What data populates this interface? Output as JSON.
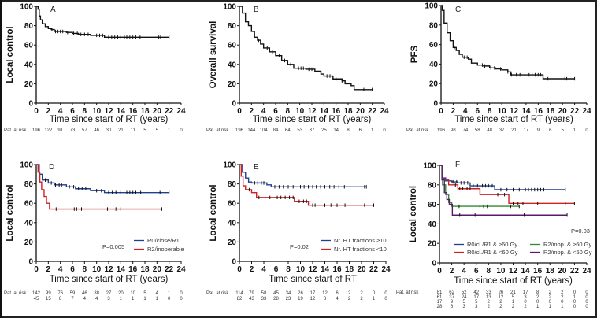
{
  "chart_data": [
    {
      "type": "line",
      "panel": "A",
      "ylabel": "Local control",
      "xlabel": "Time since start of RT (years)",
      "xlim": [
        0,
        24
      ],
      "ylim": [
        0,
        100
      ],
      "xticks": [
        "0",
        "2",
        "4",
        "6",
        "8",
        "10",
        "12",
        "14",
        "16",
        "18",
        "20",
        "22",
        "24"
      ],
      "yticks": [
        "0",
        "20",
        "40",
        "60",
        "80",
        "100"
      ],
      "series": [
        {
          "color": "#111111",
          "points": [
            [
              0,
              100
            ],
            [
              0.3,
              97
            ],
            [
              0.5,
              90
            ],
            [
              0.7,
              86
            ],
            [
              1,
              82
            ],
            [
              1.5,
              79
            ],
            [
              2,
              77
            ],
            [
              2.5,
              76
            ],
            [
              3,
              74
            ],
            [
              5,
              73
            ],
            [
              6,
              72
            ],
            [
              7,
              71
            ],
            [
              9,
              70
            ],
            [
              11.3,
              68
            ],
            [
              22,
              68
            ]
          ],
          "censored": [
            2.6,
            3.2,
            3.6,
            4,
            4.4,
            5.2,
            6.2,
            6.8,
            7.4,
            8,
            8.6,
            10,
            10.5,
            11,
            12,
            12.5,
            13,
            13.5,
            14,
            14.6,
            15,
            15.5,
            16,
            16.5,
            17.2,
            20.3,
            20.6,
            22
          ]
        }
      ],
      "at_risk": {
        "label": "Pat. at risk",
        "rows": [
          [
            "196",
            "122",
            "91",
            "73",
            "57",
            "46",
            "30",
            "21",
            "11",
            "5",
            "5",
            "1",
            "0"
          ]
        ]
      }
    },
    {
      "type": "line",
      "panel": "B",
      "ylabel": "Overall survival",
      "xlabel": "Time since start of RT (years)",
      "xlim": [
        0,
        24
      ],
      "ylim": [
        0,
        100
      ],
      "xticks": [
        "0",
        "2",
        "4",
        "6",
        "8",
        "10",
        "12",
        "14",
        "16",
        "18",
        "20",
        "22",
        "24"
      ],
      "yticks": [
        "0",
        "20",
        "40",
        "60",
        "80",
        "100"
      ],
      "series": [
        {
          "color": "#111111",
          "points": [
            [
              0,
              100
            ],
            [
              0.5,
              93
            ],
            [
              1,
              84
            ],
            [
              1.5,
              80
            ],
            [
              2,
              74
            ],
            [
              2.5,
              68
            ],
            [
              3,
              65
            ],
            [
              3.5,
              61
            ],
            [
              4,
              57
            ],
            [
              5,
              53
            ],
            [
              6,
              49
            ],
            [
              7,
              44
            ],
            [
              8,
              40
            ],
            [
              9,
              36
            ],
            [
              11,
              35
            ],
            [
              12.5,
              33
            ],
            [
              13.5,
              30
            ],
            [
              14,
              28
            ],
            [
              15.5,
              25
            ],
            [
              17,
              23
            ],
            [
              17.5,
              20
            ],
            [
              18.5,
              18
            ],
            [
              19,
              14
            ],
            [
              22,
              14
            ]
          ],
          "censored": [
            3.2,
            4.6,
            5.5,
            6.6,
            7.5,
            8.5,
            9.8,
            10.2,
            10.6,
            11.5,
            12,
            14.5,
            15,
            16,
            17,
            20.6,
            22
          ]
        }
      ],
      "at_risk": {
        "label": "Pat. at risk",
        "rows": [
          [
            "196",
            "144",
            "104",
            "84",
            "64",
            "53",
            "37",
            "25",
            "14",
            "8",
            "6",
            "1",
            "0"
          ]
        ]
      }
    },
    {
      "type": "line",
      "panel": "C",
      "ylabel": "PFS",
      "xlabel": "Time since start of RT (years)",
      "xlim": [
        0,
        24
      ],
      "ylim": [
        0,
        100
      ],
      "xticks": [
        "0",
        "2",
        "4",
        "6",
        "8",
        "10",
        "12",
        "14",
        "16",
        "18",
        "20",
        "22",
        "24"
      ],
      "yticks": [
        "0",
        "20",
        "40",
        "60",
        "80",
        "100"
      ],
      "series": [
        {
          "color": "#111111",
          "points": [
            [
              0,
              100
            ],
            [
              0.2,
              95
            ],
            [
              0.5,
              82
            ],
            [
              1,
              72
            ],
            [
              1.5,
              64
            ],
            [
              2,
              57
            ],
            [
              2.5,
              54
            ],
            [
              3,
              50
            ],
            [
              3.5,
              47
            ],
            [
              4.5,
              45
            ],
            [
              5,
              41
            ],
            [
              6,
              39
            ],
            [
              7,
              38
            ],
            [
              8,
              36
            ],
            [
              9,
              35
            ],
            [
              10,
              34
            ],
            [
              11,
              32
            ],
            [
              11.5,
              29
            ],
            [
              16.8,
              29
            ],
            [
              16.8,
              25
            ],
            [
              22,
              25
            ]
          ],
          "censored": [
            2.2,
            3.8,
            4.3,
            6.8,
            7.2,
            8.2,
            8.8,
            9.8,
            11,
            11.6,
            12.4,
            13,
            14.5,
            15,
            15.5,
            16,
            16.4,
            17.6,
            20.4,
            20.7,
            22
          ]
        }
      ],
      "at_risk": {
        "label": "Pat. at risk",
        "rows": [
          [
            "196",
            "98",
            "74",
            "58",
            "48",
            "37",
            "21",
            "17",
            "9",
            "6",
            "5",
            "1",
            "0"
          ]
        ]
      }
    },
    {
      "type": "line",
      "panel": "D",
      "ylabel": "Local control",
      "xlabel": "Time since start of RT (years)",
      "xlim": [
        0,
        24
      ],
      "ylim": [
        0,
        100
      ],
      "xticks": [
        "0",
        "2",
        "4",
        "6",
        "8",
        "10",
        "12",
        "14",
        "16",
        "18",
        "20",
        "22",
        "24"
      ],
      "yticks": [
        "0",
        "20",
        "40",
        "60",
        "80",
        "100"
      ],
      "p_value": "P=0.005",
      "series": [
        {
          "name": "R0/close/R1",
          "color": "#1f3f8f",
          "points": [
            [
              0,
              100
            ],
            [
              0.5,
              90
            ],
            [
              1,
              84
            ],
            [
              2,
              81
            ],
            [
              3,
              79
            ],
            [
              5,
              77
            ],
            [
              6.5,
              75
            ],
            [
              9,
              73
            ],
            [
              11.3,
              71
            ],
            [
              22,
              71
            ]
          ],
          "censored": [
            1.5,
            2.5,
            3.2,
            3.8,
            4.2,
            5.5,
            6.2,
            7,
            7.6,
            8.2,
            10,
            10.8,
            12,
            12.6,
            13.2,
            14,
            15,
            15.5,
            16,
            16.5,
            17.3,
            20.5,
            22
          ]
        },
        {
          "name": "R2/inoperable",
          "color": "#cc2222",
          "points": [
            [
              0,
              100
            ],
            [
              0.3,
              92
            ],
            [
              0.6,
              82
            ],
            [
              0.9,
              74
            ],
            [
              1.3,
              67
            ],
            [
              1.7,
              60
            ],
            [
              2.2,
              54
            ],
            [
              20.8,
              54
            ]
          ],
          "censored": [
            3.3,
            6.3,
            6.7,
            7.5,
            11.8,
            13.2,
            14,
            20.8
          ]
        }
      ],
      "at_risk": {
        "label": "Pat. at risk",
        "rows": [
          [
            "142",
            "99",
            "76",
            "59",
            "46",
            "38",
            "27",
            "20",
            "10",
            "5",
            "4",
            "1",
            "0"
          ],
          [
            "45",
            "15",
            "8",
            "7",
            "4",
            "4",
            "3",
            "1",
            "1",
            "1",
            "1",
            "0",
            "0"
          ]
        ]
      }
    },
    {
      "type": "line",
      "panel": "E",
      "ylabel": "Local control",
      "xlabel": "Time since start of RT",
      "xlim": [
        0,
        24
      ],
      "ylim": [
        0,
        100
      ],
      "xticks": [
        "0",
        "2",
        "4",
        "6",
        "8",
        "10",
        "12",
        "14",
        "16",
        "18",
        "20",
        "22",
        "24"
      ],
      "yticks": [
        "0",
        "20",
        "40",
        "60",
        "80",
        "100"
      ],
      "p_value": "P=0.02",
      "series": [
        {
          "name": "Nr. HT fractions ≥10",
          "color": "#1f3f8f",
          "points": [
            [
              0,
              100
            ],
            [
              0.5,
              92
            ],
            [
              1,
              86
            ],
            [
              1.5,
              82
            ],
            [
              2,
              81
            ],
            [
              4.5,
              79
            ],
            [
              5.2,
              77
            ],
            [
              20.8,
              77
            ]
          ],
          "censored": [
            2.5,
            3,
            3.6,
            4,
            5.8,
            6.5,
            7.2,
            8,
            8.8,
            10,
            10.6,
            11.3,
            12,
            12.6,
            13.3,
            14,
            14.8,
            15.5,
            16.3,
            17.2,
            20.5,
            20.8
          ]
        },
        {
          "name": "Nr. HT fractions <10",
          "color": "#cc2222",
          "points": [
            [
              0,
              100
            ],
            [
              0.3,
              88
            ],
            [
              0.6,
              78
            ],
            [
              1,
              74
            ],
            [
              2,
              71
            ],
            [
              2.8,
              66
            ],
            [
              9,
              66
            ],
            [
              9,
              62
            ],
            [
              11.3,
              62
            ],
            [
              11.3,
              58
            ],
            [
              22,
              58
            ]
          ],
          "censored": [
            1.6,
            2.4,
            3.2,
            4.2,
            5,
            6.2,
            6.8,
            7.5,
            8.2,
            8.8,
            9.8,
            10.5,
            11,
            12,
            12.4,
            14,
            15,
            16,
            17.3,
            20.5,
            22
          ]
        }
      ],
      "at_risk": {
        "label": "Pat. at risk",
        "rows": [
          [
            "114",
            "79",
            "58",
            "45",
            "34",
            "26",
            "17",
            "12",
            "6",
            "2",
            "2",
            "0",
            "0"
          ],
          [
            "82",
            "43",
            "33",
            "28",
            "23",
            "19",
            "12",
            "8",
            "4",
            "2",
            "2",
            "1",
            "0"
          ]
        ]
      }
    },
    {
      "type": "line",
      "panel": "F",
      "ylabel": "Local control",
      "xlabel": "Time since start of RT (years)",
      "xlim": [
        0,
        24
      ],
      "ylim": [
        0,
        100
      ],
      "xticks": [
        "0",
        "2",
        "4",
        "6",
        "8",
        "10",
        "12",
        "14",
        "16",
        "18",
        "20",
        "22",
        "24"
      ],
      "yticks": [
        "0",
        "20",
        "40",
        "60",
        "80",
        "100"
      ],
      "p_value": "P=0.03",
      "series": [
        {
          "name": "R0/cl./R1 & ≥60 Gy",
          "color": "#1f3f8f",
          "points": [
            [
              0,
              100
            ],
            [
              0.5,
              87
            ],
            [
              1,
              84
            ],
            [
              2,
              83
            ],
            [
              3,
              82
            ],
            [
              5,
              79
            ],
            [
              9,
              77
            ],
            [
              9,
              75
            ],
            [
              20.5,
              75
            ]
          ],
          "censored": [
            2.2,
            2.8,
            3.5,
            4,
            4.6,
            5.5,
            6.2,
            7,
            7.5,
            8,
            8.6,
            10,
            11,
            12,
            13,
            14,
            14.5,
            15,
            15.5,
            16,
            16.5,
            17,
            20.5
          ]
        },
        {
          "name": "R0/cl./R1 & <60 Gy",
          "color": "#cc2222",
          "points": [
            [
              0,
              100
            ],
            [
              0.5,
              85
            ],
            [
              1.5,
              80
            ],
            [
              3,
              76
            ],
            [
              6.6,
              76
            ],
            [
              6.6,
              70
            ],
            [
              11.3,
              70
            ],
            [
              11.3,
              61
            ],
            [
              22,
              61
            ]
          ],
          "censored": [
            2.6,
            3.3,
            3.8,
            4.5,
            5,
            9.5,
            10.6,
            12,
            12.8,
            13.6,
            16,
            20.5,
            22
          ]
        },
        {
          "name": "R2/inop. & ≥60 Gy",
          "color": "#2e8b2e",
          "points": [
            [
              0,
              100
            ],
            [
              0.5,
              80
            ],
            [
              1,
              70
            ],
            [
              1.5,
              62
            ],
            [
              2,
              58
            ],
            [
              13,
              58
            ]
          ],
          "censored": [
            3.2,
            6.6,
            7.2,
            7.8,
            11.6,
            13
          ]
        },
        {
          "name": "R2/inop. & <60 Gy",
          "color": "#5a1a6a",
          "points": [
            [
              0,
              100
            ],
            [
              0.4,
              85
            ],
            [
              0.8,
              72
            ],
            [
              1.2,
              65
            ],
            [
              1.6,
              60
            ],
            [
              2.1,
              49
            ],
            [
              20.8,
              49
            ]
          ],
          "censored": [
            3.3,
            5.8,
            13.8,
            20.8
          ]
        }
      ],
      "at_risk": {
        "label": "Pat. at risk",
        "rows": [
          [
            "81",
            "62",
            "52",
            "42",
            "33",
            "26",
            "21",
            "17",
            "8",
            "2",
            "2",
            "0",
            "0"
          ],
          [
            "61",
            "37",
            "24",
            "17",
            "13",
            "12",
            "5",
            "3",
            "2",
            "2",
            "2",
            "1",
            "0"
          ],
          [
            "17",
            "9",
            "5",
            "5",
            "2",
            "2",
            "1",
            "0",
            "0",
            "0",
            "0",
            "0",
            "0"
          ],
          [
            "28",
            "6",
            "3",
            "3",
            "2",
            "2",
            "2",
            "2",
            "1",
            "1",
            "1",
            "0",
            "0"
          ]
        ]
      }
    }
  ]
}
